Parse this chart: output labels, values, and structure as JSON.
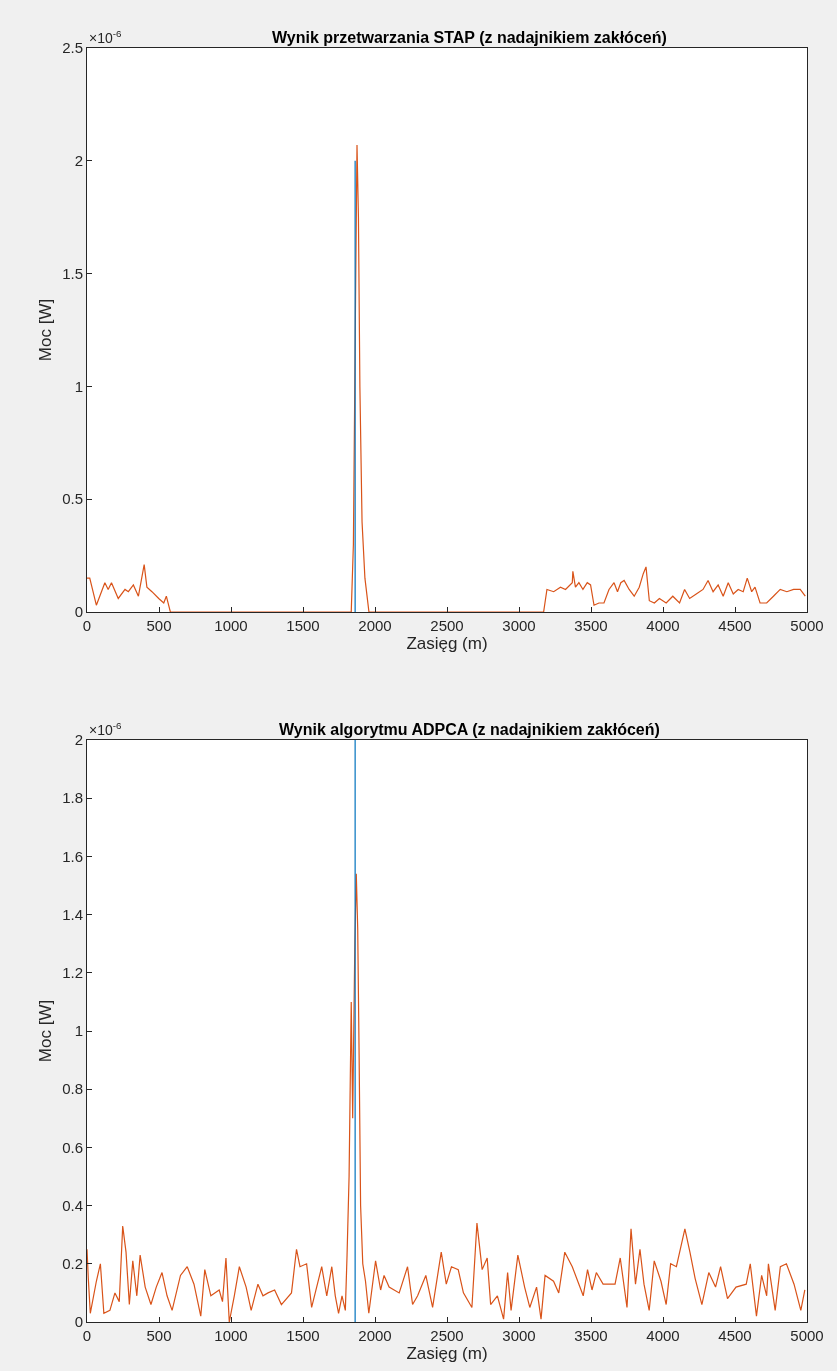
{
  "chart_data": [
    {
      "type": "line",
      "title": "Wynik przetwarzania STAP (z nadajnikiem zakłóceń)",
      "xlabel": "Zasięg (m)",
      "ylabel": "Moc [W]",
      "annotations": [
        "×10$^{-6}$"
      ],
      "xlim": [
        0,
        5000
      ],
      "xticks": [
        0,
        500,
        1000,
        1500,
        2000,
        2500,
        3000,
        3500,
        4000,
        4500,
        5000
      ],
      "ylim": [
        0,
        2.5
      ],
      "yticks": [
        0,
        0.5,
        1,
        1.5,
        2,
        2.5
      ],
      "marker": "none",
      "line_style": "solid",
      "series": [
        {
          "color": "#d95319",
          "x": [
            0,
            19,
            65,
            124,
            147,
            170,
            217,
            264,
            287,
            322,
            357,
            397,
            416,
            451,
            498,
            533,
            551,
            579,
            1835,
            1850,
            1865,
            1875,
            1885,
            1895,
            1910,
            1930,
            1958,
            3171,
            3194,
            3241,
            3288,
            3323,
            3370,
            3374,
            3392,
            3416,
            3444,
            3474,
            3497,
            3521,
            3555,
            3590,
            3625,
            3660,
            3684,
            3707,
            3730,
            3765,
            3800,
            3835,
            3863,
            3882,
            3905,
            3940,
            3975,
            4022,
            4068,
            4115,
            4150,
            4185,
            4231,
            4278,
            4313,
            4348,
            4383,
            4418,
            4453,
            4488,
            4522,
            4557,
            4585,
            4616,
            4639,
            4674,
            4720,
            4767,
            4814,
            4860,
            4907,
            4953,
            4988
          ],
          "values": [
            0.15,
            0.15,
            0.03,
            0.13,
            0.1,
            0.13,
            0.06,
            0.1,
            0.09,
            0.12,
            0.07,
            0.21,
            0.11,
            0.09,
            0.06,
            0.04,
            0.07,
            0,
            0,
            0.3,
            1.4,
            2.07,
            1.75,
            1.0,
            0.4,
            0.15,
            0,
            0,
            0.1,
            0.09,
            0.11,
            0.1,
            0.13,
            0.18,
            0.11,
            0.13,
            0.1,
            0.13,
            0.12,
            0.03,
            0.04,
            0.04,
            0.1,
            0.13,
            0.09,
            0.13,
            0.14,
            0.1,
            0.07,
            0.11,
            0.17,
            0.2,
            0.05,
            0.04,
            0.06,
            0.04,
            0.07,
            0.04,
            0.1,
            0.06,
            0.08,
            0.1,
            0.14,
            0.09,
            0.12,
            0.07,
            0.13,
            0.08,
            0.1,
            0.09,
            0.15,
            0.09,
            0.11,
            0.04,
            0.04,
            0.07,
            0.1,
            0.09,
            0.1,
            0.1,
            0.07
          ]
        },
        {
          "color": "#0072bd",
          "x": [
            1862,
            1862
          ],
          "values": [
            0,
            2.0
          ]
        }
      ]
    },
    {
      "type": "line",
      "title": "Wynik algorytmu ADPCA (z nadajnikiem zakłóceń)",
      "xlabel": "Zasięg (m)",
      "ylabel": "Moc [W]",
      "annotations": [
        "×10$^{-6}$"
      ],
      "xlim": [
        0,
        5000
      ],
      "xticks": [
        0,
        500,
        1000,
        1500,
        2000,
        2500,
        3000,
        3500,
        4000,
        4500,
        5000
      ],
      "ylim": [
        0,
        2
      ],
      "yticks": [
        0,
        0.2,
        0.4,
        0.6,
        0.8,
        1,
        1.2,
        1.4,
        1.6,
        1.8,
        2
      ],
      "marker": "none",
      "line_style": "solid",
      "series": [
        {
          "color": "#d95319",
          "x": [
            0,
            9,
            23,
            65,
            93,
            117,
            159,
            194,
            224,
            248,
            271,
            294,
            318,
            346,
            369,
            404,
            444,
            481,
            521,
            556,
            591,
            649,
            696,
            743,
            790,
            818,
            860,
            918,
            941,
            965,
            988,
            1023,
            1058,
            1105,
            1140,
            1187,
            1222,
            1257,
            1303,
            1350,
            1420,
            1455,
            1479,
            1525,
            1560,
            1630,
            1665,
            1700,
            1724,
            1747,
            1771,
            1794,
            1806,
            1820,
            1835,
            1845,
            1860,
            1870,
            1880,
            1890,
            1900,
            1915,
            1934,
            1957,
            2004,
            2039,
            2063,
            2098,
            2168,
            2226,
            2261,
            2296,
            2353,
            2400,
            2460,
            2495,
            2531,
            2578,
            2614,
            2673,
            2708,
            2744,
            2779,
            2803,
            2850,
            2893,
            2921,
            2945,
            2992,
            3039,
            3075,
            3122,
            3153,
            3181,
            3240,
            3276,
            3318,
            3370,
            3446,
            3476,
            3507,
            3537,
            3584,
            3667,
            3703,
            3750,
            3778,
            3809,
            3840,
            3868,
            3904,
            3939,
            3986,
            4022,
            4053,
            4093,
            4152,
            4187,
            4223,
            4270,
            4318,
            4365,
            4400,
            4448,
            4507,
            4578,
            4606,
            4649,
            4685,
            4720,
            4732,
            4779,
            4815,
            4857,
            4910,
            4957,
            4985
          ],
          "values": [
            0.25,
            0.15,
            0.03,
            0.14,
            0.2,
            0.03,
            0.04,
            0.1,
            0.07,
            0.33,
            0.24,
            0.06,
            0.21,
            0.09,
            0.23,
            0.12,
            0.06,
            0.12,
            0.17,
            0.09,
            0.04,
            0.16,
            0.19,
            0.13,
            0.02,
            0.18,
            0.09,
            0.11,
            0.07,
            0.22,
            0.0,
            0.09,
            0.19,
            0.12,
            0.04,
            0.13,
            0.09,
            0.1,
            0.11,
            0.06,
            0.1,
            0.25,
            0.19,
            0.2,
            0.05,
            0.19,
            0.09,
            0.19,
            0.09,
            0.03,
            0.09,
            0.04,
            0.23,
            0.5,
            1.1,
            0.7,
            1.3,
            1.54,
            1.35,
            0.9,
            0.4,
            0.2,
            0.14,
            0.03,
            0.21,
            0.11,
            0.16,
            0.12,
            0.1,
            0.19,
            0.06,
            0.09,
            0.16,
            0.05,
            0.24,
            0.13,
            0.19,
            0.18,
            0.1,
            0.05,
            0.34,
            0.18,
            0.22,
            0.06,
            0.09,
            0.01,
            0.17,
            0.04,
            0.23,
            0.12,
            0.05,
            0.12,
            0.01,
            0.16,
            0.14,
            0.1,
            0.24,
            0.19,
            0.09,
            0.18,
            0.11,
            0.17,
            0.13,
            0.13,
            0.22,
            0.05,
            0.32,
            0.13,
            0.25,
            0.13,
            0.04,
            0.21,
            0.14,
            0.06,
            0.2,
            0.19,
            0.32,
            0.24,
            0.15,
            0.06,
            0.17,
            0.12,
            0.19,
            0.08,
            0.12,
            0.13,
            0.2,
            0.02,
            0.16,
            0.09,
            0.2,
            0.04,
            0.19,
            0.2,
            0.13,
            0.04,
            0.11
          ]
        },
        {
          "color": "#0072bd",
          "x": [
            1862,
            1862
          ],
          "values": [
            0,
            2.0
          ]
        }
      ]
    }
  ]
}
